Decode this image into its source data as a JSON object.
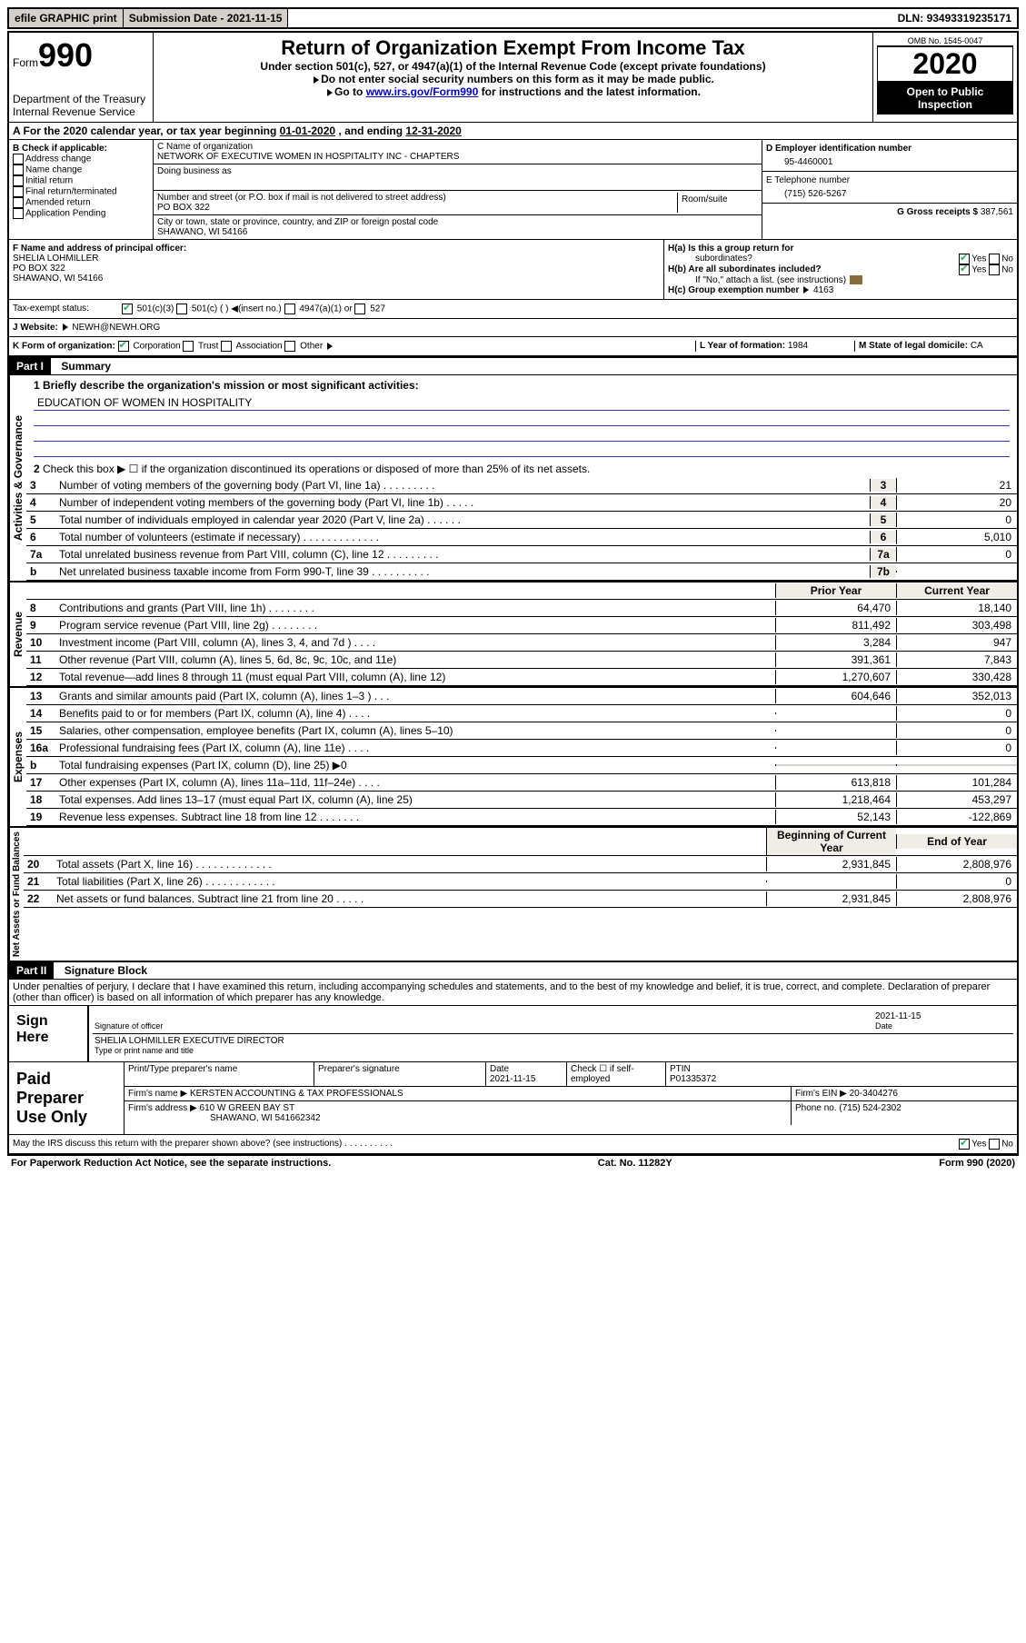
{
  "topbar": {
    "efile": "efile GRAPHIC print",
    "sub_date_label": "Submission Date - ",
    "sub_date": "2021-11-15",
    "dln_label": "DLN: ",
    "dln": "93493319235171"
  },
  "header": {
    "form_word": "Form",
    "form_num": "990",
    "dept": "Department of the Treasury",
    "irs": "Internal Revenue Service",
    "title": "Return of Organization Exempt From Income Tax",
    "sub1": "Under section 501(c), 527, or 4947(a)(1) of the Internal Revenue Code (except private foundations)",
    "sub2": "Do not enter social security numbers on this form as it may be made public.",
    "sub3_a": "Go to ",
    "sub3_link": "www.irs.gov/Form990",
    "sub3_b": " for instructions and the latest information.",
    "omb": "OMB No. 1545-0047",
    "year": "2020",
    "open": "Open to Public Inspection"
  },
  "a": {
    "text": "A For the 2020 calendar year, or tax year beginning ",
    "begin": "01-01-2020",
    "mid": " , and ending ",
    "end": "12-31-2020"
  },
  "b": {
    "label": "B Check if applicable:",
    "addr": "Address change",
    "name": "Name change",
    "init": "Initial return",
    "final": "Final return/terminated",
    "amend": "Amended return",
    "app": "Application Pending"
  },
  "c": {
    "name_label": "C Name of organization",
    "name": "NETWORK OF EXECUTIVE WOMEN IN HOSPITALITY INC - CHAPTERS",
    "dba_label": "Doing business as",
    "street_label": "Number and street (or P.O. box if mail is not delivered to street address)",
    "room_label": "Room/suite",
    "street": "PO BOX 322",
    "city_label": "City or town, state or province, country, and ZIP or foreign postal code",
    "city": "SHAWANO, WI  54166"
  },
  "d": {
    "label": "D Employer identification number",
    "value": "95-4460001"
  },
  "e": {
    "label": "E Telephone number",
    "value": "(715) 526-5267"
  },
  "g": {
    "label": "G Gross receipts $ ",
    "value": "387,561"
  },
  "f": {
    "label": "F Name and address of principal officer:",
    "name": "SHELIA LOHMILLER",
    "addr1": "PO BOX 322",
    "addr2": "SHAWANO, WI  54166"
  },
  "h": {
    "a": "H(a)  Is this a group return for",
    "a2": "subordinates?",
    "b": "H(b)  Are all subordinates included?",
    "note": "If \"No,\" attach a list. (see instructions)",
    "c": "H(c)  Group exemption number",
    "c_val": "4163",
    "yes": "Yes",
    "no": "No"
  },
  "i": {
    "label": "Tax-exempt status:",
    "o1": "501(c)(3)",
    "o2": "501(c) (   )",
    "o2b": "(insert no.)",
    "o3": "4947(a)(1) or",
    "o4": "527"
  },
  "j": {
    "label": "J  Website:",
    "value": "NEWH@NEWH.ORG"
  },
  "k": {
    "label": "K Form of organization:",
    "corp": "Corporation",
    "trust": "Trust",
    "assoc": "Association",
    "other": "Other"
  },
  "l": {
    "label": "L Year of formation: ",
    "value": "1984"
  },
  "m": {
    "label": "M State of legal domicile: ",
    "value": "CA"
  },
  "part1": {
    "tag": "Part I",
    "title": "Summary",
    "side_gov": "Activities & Governance",
    "side_rev": "Revenue",
    "side_exp": "Expenses",
    "side_net": "Net Assets or Fund Balances",
    "l1_label": "1  Briefly describe the organization's mission or most significant activities:",
    "l1_text": "EDUCATION OF WOMEN IN HOSPITALITY",
    "l2": "Check this box ▶ ☐  if the organization discontinued its operations or disposed of more than 25% of its net assets.",
    "prior": "Prior Year",
    "current": "Current Year",
    "begin": "Beginning of Current Year",
    "end": "End of Year",
    "rows_gov": [
      {
        "n": "3",
        "t": "Number of voting members of the governing body (Part VI, line 1a)   .   .   .   .   .   .   .   .   .",
        "nb": "3",
        "v": "21"
      },
      {
        "n": "4",
        "t": "Number of independent voting members of the governing body (Part VI, line 1b)   .   .   .   .   .",
        "nb": "4",
        "v": "20"
      },
      {
        "n": "5",
        "t": "Total number of individuals employed in calendar year 2020 (Part V, line 2a)   .   .   .   .   .   .",
        "nb": "5",
        "v": "0"
      },
      {
        "n": "6",
        "t": "Total number of volunteers (estimate if necessary)   .   .   .   .   .   .   .   .   .   .   .   .   .",
        "nb": "6",
        "v": "5,010"
      },
      {
        "n": "7a",
        "t": "Total unrelated business revenue from Part VIII, column (C), line 12   .   .   .   .   .   .   .   .   .",
        "nb": "7a",
        "v": "0"
      },
      {
        "n": "b",
        "t": "Net unrelated business taxable income from Form 990-T, line 39   .   .   .   .   .   .   .   .   .   .",
        "nb": "7b",
        "v": ""
      }
    ],
    "rows_rev": [
      {
        "n": "8",
        "t": "Contributions and grants (Part VIII, line 1h)    .    .    .    .    .    .    .    .",
        "p": "64,470",
        "c": "18,140"
      },
      {
        "n": "9",
        "t": "Program service revenue (Part VIII, line 2g)    .    .    .    .    .    .    .    .",
        "p": "811,492",
        "c": "303,498"
      },
      {
        "n": "10",
        "t": "Investment income (Part VIII, column (A), lines 3, 4, and 7d )    .    .    .    .",
        "p": "3,284",
        "c": "947"
      },
      {
        "n": "11",
        "t": "Other revenue (Part VIII, column (A), lines 5, 6d, 8c, 9c, 10c, and 11e)",
        "p": "391,361",
        "c": "7,843"
      },
      {
        "n": "12",
        "t": "Total revenue—add lines 8 through 11 (must equal Part VIII, column (A), line 12)",
        "p": "1,270,607",
        "c": "330,428"
      }
    ],
    "rows_exp": [
      {
        "n": "13",
        "t": "Grants and similar amounts paid (Part IX, column (A), lines 1–3 )    .    .    .",
        "p": "604,646",
        "c": "352,013"
      },
      {
        "n": "14",
        "t": "Benefits paid to or for members (Part IX, column (A), line 4)    .    .    .    .",
        "p": "",
        "c": "0"
      },
      {
        "n": "15",
        "t": "Salaries, other compensation, employee benefits (Part IX, column (A), lines 5–10)",
        "p": "",
        "c": "0"
      },
      {
        "n": "16a",
        "t": "Professional fundraising fees (Part IX, column (A), line 11e)    .    .    .    .",
        "p": "",
        "c": "0"
      },
      {
        "n": "b",
        "t": "Total fundraising expenses (Part IX, column (D), line 25) ▶0",
        "p": "grey",
        "c": "grey"
      },
      {
        "n": "17",
        "t": "Other expenses (Part IX, column (A), lines 11a–11d, 11f–24e)    .    .    .    .",
        "p": "613,818",
        "c": "101,284"
      },
      {
        "n": "18",
        "t": "Total expenses. Add lines 13–17 (must equal Part IX, column (A), line 25)",
        "p": "1,218,464",
        "c": "453,297"
      },
      {
        "n": "19",
        "t": "Revenue less expenses. Subtract line 18 from line 12    .    .    .    .    .    .    .",
        "p": "52,143",
        "c": "-122,869"
      }
    ],
    "rows_net": [
      {
        "n": "20",
        "t": "Total assets (Part X, line 16)    .    .    .    .    .    .    .    .    .    .    .    .    .",
        "p": "2,931,845",
        "c": "2,808,976"
      },
      {
        "n": "21",
        "t": "Total liabilities (Part X, line 26)    .    .    .    .    .    .    .    .    .    .    .    .",
        "p": "",
        "c": "0"
      },
      {
        "n": "22",
        "t": "Net assets or fund balances. Subtract line 21 from line 20    .    .    .    .    .",
        "p": "2,931,845",
        "c": "2,808,976"
      }
    ]
  },
  "part2": {
    "tag": "Part II",
    "title": "Signature Block",
    "perjury": "Under penalties of perjury, I declare that I have examined this return, including accompanying schedules and statements, and to the best of my knowledge and belief, it is true, correct, and complete. Declaration of preparer (other than officer) is based on all information of which preparer has any knowledge.",
    "sign_here": "Sign Here",
    "sig_officer": "Signature of officer",
    "date": "Date",
    "sig_date": "2021-11-15",
    "name_title": "SHELIA LOHMILLER  EXECUTIVE DIRECTOR",
    "type_print": "Type or print name and title",
    "paid": "Paid Preparer Use Only",
    "p_name_label": "Print/Type preparer's name",
    "p_sig_label": "Preparer's signature",
    "p_date_label": "Date",
    "p_date": "2021-11-15",
    "check_self": "Check ☐ if self-employed",
    "ptin_label": "PTIN",
    "ptin": "P01335372",
    "firm_name_label": "Firm's name    ▶",
    "firm_name": "KERSTEN ACCOUNTING & TAX PROFESSIONALS",
    "firm_ein_label": "Firm's EIN ▶",
    "firm_ein": "20-3404276",
    "firm_addr_label": "Firm's address ▶",
    "firm_addr1": "610 W GREEN BAY ST",
    "firm_addr2": "SHAWANO, WI  541662342",
    "phone_label": "Phone no. ",
    "phone": "(715) 524-2302",
    "discuss": "May the IRS discuss this return with the preparer shown above? (see instructions)    .    .    .    .    .    .    .    .    .    .",
    "yes": "Yes",
    "no": "No"
  },
  "footer": {
    "left": "For Paperwork Reduction Act Notice, see the separate instructions.",
    "mid": "Cat. No. 11282Y",
    "right": "Form 990 (2020)"
  }
}
